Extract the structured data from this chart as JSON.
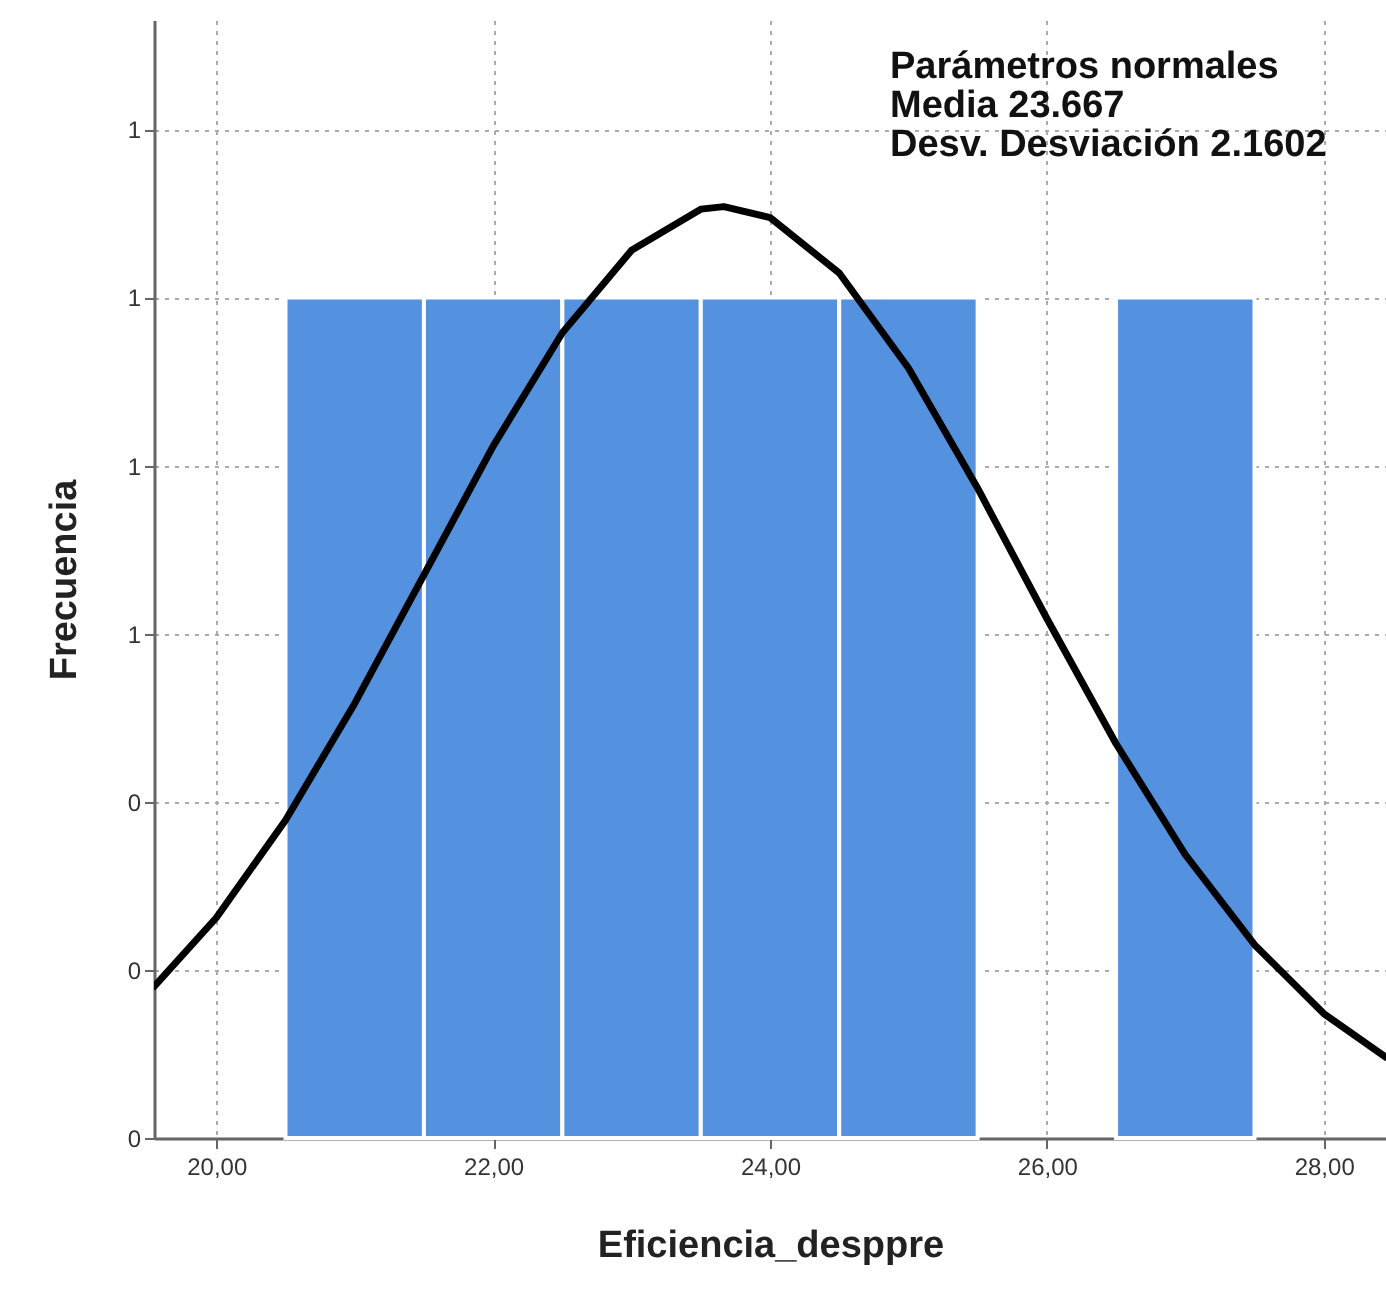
{
  "chart_data": {
    "type": "histogram",
    "xlabel": "Eficiencia_desppre",
    "ylabel": "Frecuencia",
    "bins": [
      20.5,
      21.5,
      22.5,
      23.5,
      24.5,
      25.5,
      26.5,
      27.5
    ],
    "values": [
      1,
      1,
      1,
      1,
      1,
      0,
      1
    ],
    "color": "#5492e0",
    "series": [
      {
        "type": "line",
        "color": "#000000",
        "x": [
          19.55,
          20.0,
          20.5,
          21.0,
          21.5,
          22.0,
          22.5,
          23.0,
          23.5,
          23.667,
          24.0,
          24.5,
          25.0,
          25.5,
          26.0,
          26.5,
          27.0,
          27.5,
          28.0,
          28.45
        ],
        "values": [
          0.18,
          0.262,
          0.378,
          0.517,
          0.67,
          0.823,
          0.958,
          1.056,
          1.105,
          1.108,
          1.095,
          1.029,
          0.916,
          0.773,
          0.618,
          0.469,
          0.337,
          0.23,
          0.148,
          0.096
        ]
      }
    ],
    "xlim": [
      19.55,
      28.45
    ],
    "ylim": [
      0,
      1.33
    ],
    "xticks": [
      {
        "value": 20,
        "label": "20,00"
      },
      {
        "value": 22,
        "label": "22,00"
      },
      {
        "value": 24,
        "label": "24,00"
      },
      {
        "value": 26,
        "label": "26,00"
      },
      {
        "value": 28,
        "label": "28,00"
      }
    ],
    "yticks": [
      {
        "value": 0,
        "label": "0"
      },
      {
        "value": 0.2,
        "label": "0"
      },
      {
        "value": 0.4,
        "label": "0"
      },
      {
        "value": 0.6,
        "label": "1"
      },
      {
        "value": 0.8,
        "label": "1"
      },
      {
        "value": 1.0,
        "label": "1"
      },
      {
        "value": 1.2,
        "label": "1"
      }
    ],
    "grid": true,
    "line_style": "solid",
    "marker": "none",
    "annotations": [
      "Parámetros normales",
      "Media 23.667",
      "Desv. Desviación 2.1602"
    ]
  }
}
